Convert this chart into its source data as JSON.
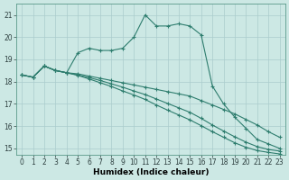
{
  "xlabel": "Humidex (Indice chaleur)",
  "background_color": "#cce8e4",
  "grid_color": "#aacccc",
  "line_color": "#2e7d6e",
  "xlim": [
    -0.5,
    23.5
  ],
  "ylim": [
    14.7,
    21.5
  ],
  "yticks": [
    15,
    16,
    17,
    18,
    19,
    20,
    21
  ],
  "xticks": [
    0,
    1,
    2,
    3,
    4,
    5,
    6,
    7,
    8,
    9,
    10,
    11,
    12,
    13,
    14,
    15,
    16,
    17,
    18,
    19,
    20,
    21,
    22,
    23
  ],
  "series": [
    [
      18.3,
      18.2,
      18.7,
      18.5,
      18.4,
      19.3,
      19.5,
      19.4,
      19.4,
      19.5,
      20.0,
      21.0,
      20.5,
      20.5,
      20.6,
      20.5,
      20.1,
      17.8,
      17.0,
      16.4,
      15.9,
      15.4,
      15.2,
      15.0
    ],
    [
      18.3,
      18.2,
      18.7,
      18.5,
      18.4,
      18.35,
      18.25,
      18.15,
      18.05,
      17.95,
      17.85,
      17.75,
      17.65,
      17.55,
      17.45,
      17.35,
      17.15,
      16.95,
      16.75,
      16.55,
      16.3,
      16.05,
      15.75,
      15.5
    ],
    [
      18.3,
      18.2,
      18.7,
      18.5,
      18.4,
      18.3,
      18.18,
      18.05,
      17.9,
      17.75,
      17.58,
      17.42,
      17.22,
      17.02,
      16.82,
      16.62,
      16.35,
      16.05,
      15.78,
      15.52,
      15.28,
      15.08,
      14.95,
      14.88
    ],
    [
      18.3,
      18.2,
      18.7,
      18.5,
      18.4,
      18.28,
      18.12,
      17.95,
      17.78,
      17.58,
      17.4,
      17.2,
      16.95,
      16.72,
      16.5,
      16.28,
      16.02,
      15.75,
      15.5,
      15.25,
      15.05,
      14.9,
      14.82,
      14.75
    ]
  ]
}
